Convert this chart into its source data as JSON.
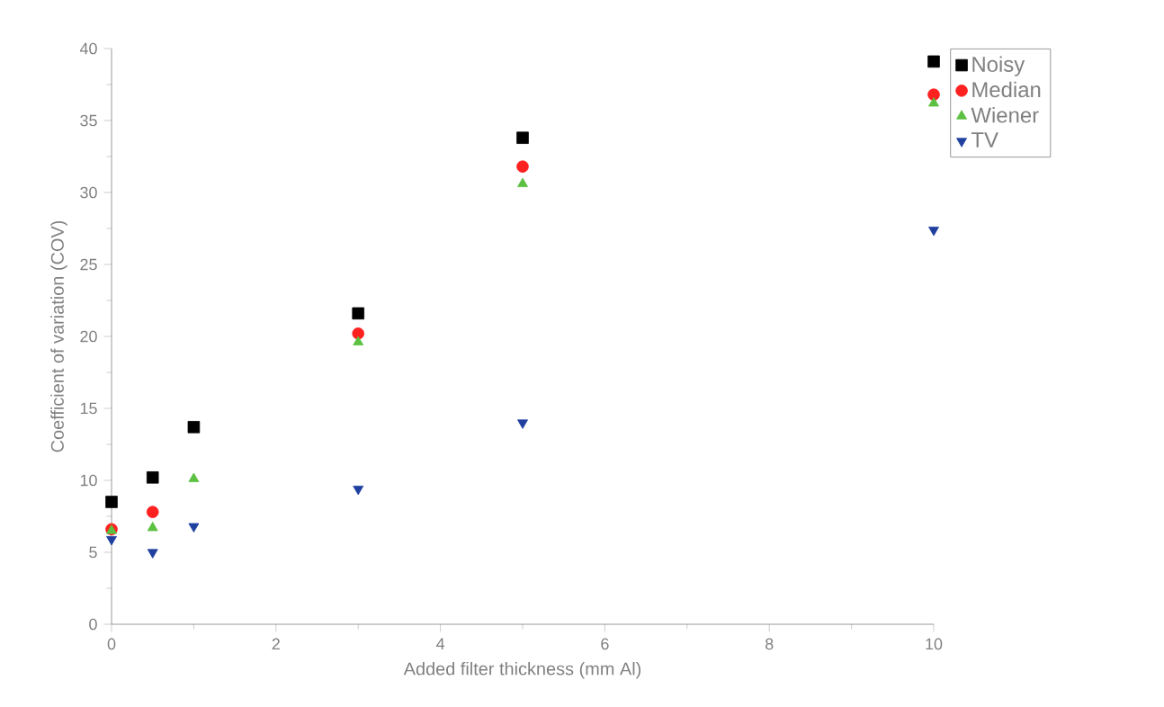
{
  "chart_data": {
    "type": "scatter",
    "xlabel": "Added filter thickness (mm Al)",
    "ylabel": "Coefficient of variation (COV)",
    "xlim": [
      0,
      10
    ],
    "ylim": [
      0,
      40
    ],
    "xticks": [
      0,
      2,
      4,
      6,
      8,
      10
    ],
    "yticks": [
      0,
      5,
      10,
      15,
      20,
      25,
      30,
      35,
      40
    ],
    "legend": "top right",
    "grid": false,
    "x": [
      0,
      0.5,
      1,
      3,
      5,
      10
    ],
    "series": [
      {
        "name": "Noisy",
        "color": "#000000",
        "marker": "square",
        "values": [
          8.5,
          10.2,
          13.7,
          21.6,
          33.8,
          39.1
        ]
      },
      {
        "name": "Median",
        "color": "#ff2020",
        "marker": "circle",
        "values": [
          6.6,
          7.8,
          null,
          20.2,
          31.8,
          36.8
        ]
      },
      {
        "name": "Wiener",
        "color": "#5cc040",
        "marker": "triangle",
        "values": [
          6.5,
          6.7,
          10.1,
          19.6,
          30.6,
          36.2
        ]
      },
      {
        "name": "TV",
        "color": "#2040a0",
        "marker": "triangle down",
        "values": [
          5.9,
          5.0,
          6.8,
          9.4,
          14.0,
          27.4
        ]
      }
    ]
  }
}
